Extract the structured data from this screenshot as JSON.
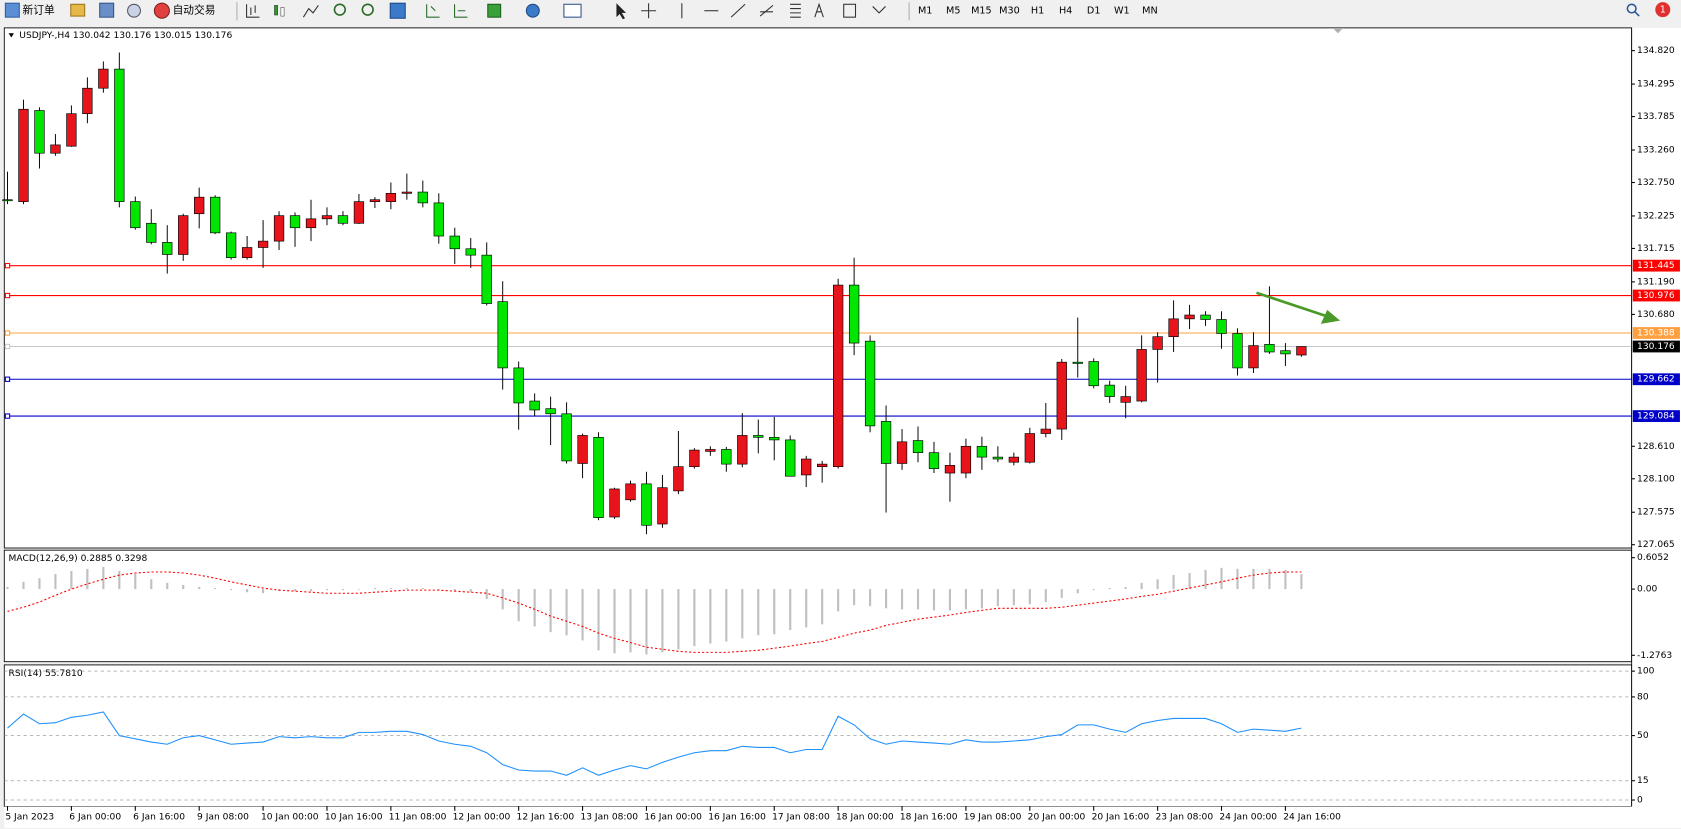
{
  "toolbar": {
    "new_order": "新订单",
    "auto_trading": "自动交易",
    "timeframes": [
      "M1",
      "M5",
      "M15",
      "M30",
      "H1",
      "H4",
      "D1",
      "W1",
      "MN"
    ],
    "notifications": "1"
  },
  "chart_data": [
    {
      "type": "candlestick",
      "header": "USDJPY-,H4  130.042 130.176 130.015 130.176",
      "categories": [
        "5 Jan 2023",
        null,
        null,
        null,
        "6 Jan 00:00",
        null,
        null,
        null,
        "6 Jan 16:00",
        null,
        null,
        null,
        "9 Jan 08:00",
        null,
        null,
        null,
        "10 Jan 00:00",
        null,
        null,
        null,
        "10 Jan 16:00",
        null,
        null,
        null,
        "11 Jan 08:00",
        null,
        null,
        null,
        "12 Jan 00:00",
        null,
        null,
        null,
        "12 Jan 16:00",
        null,
        null,
        null,
        "13 Jan 08:00",
        null,
        null,
        null,
        "16 Jan 00:00",
        null,
        null,
        null,
        "16 Jan 16:00",
        null,
        null,
        null,
        "17 Jan 08:00",
        null,
        null,
        null,
        "18 Jan 00:00",
        null,
        null,
        null,
        "18 Jan 16:00",
        null,
        null,
        null,
        "19 Jan 08:00",
        null,
        null,
        null,
        "20 Jan 00:00",
        null,
        null,
        null,
        "20 Jan 16:00",
        null,
        null,
        null,
        "23 Jan 08:00",
        null,
        null,
        null,
        "24 Jan 00:00",
        null,
        null,
        null,
        "24 Jan 16:00",
        null
      ],
      "open": [
        132.48,
        132.45,
        133.88,
        133.21,
        133.32,
        133.83,
        134.23,
        134.53,
        132.45,
        132.11,
        131.81,
        131.62,
        132.26,
        132.52,
        131.96,
        131.57,
        131.73,
        131.83,
        132.23,
        132.04,
        132.18,
        132.23,
        132.11,
        132.45,
        132.45,
        132.58,
        132.6,
        132.43,
        131.91,
        131.71,
        131.61,
        130.88,
        129.84,
        129.32,
        129.2,
        129.12,
        128.34,
        128.75,
        127.5,
        127.77,
        128.02,
        127.39,
        127.91,
        128.29,
        128.53,
        128.56,
        128.33,
        128.78,
        128.75,
        128.71,
        128.16,
        128.29,
        128.29,
        131.14,
        130.26,
        129.0,
        128.34,
        128.7,
        128.51,
        128.19,
        128.19,
        128.61,
        128.44,
        128.36,
        128.36,
        128.81,
        128.88,
        129.93,
        129.94,
        129.57,
        129.3,
        129.32,
        130.13,
        130.33,
        130.61,
        130.67,
        130.6,
        130.38,
        129.84,
        130.21,
        130.11,
        130.042
      ],
      "high": [
        132.92,
        134.05,
        133.93,
        133.51,
        133.96,
        134.4,
        134.65,
        134.79,
        132.53,
        132.33,
        132.08,
        132.26,
        132.67,
        132.55,
        131.98,
        131.91,
        132.16,
        132.3,
        132.28,
        132.48,
        132.36,
        132.3,
        132.57,
        132.52,
        132.75,
        132.89,
        132.78,
        132.58,
        132.04,
        131.88,
        131.81,
        131.2,
        129.94,
        129.44,
        129.39,
        129.3,
        128.81,
        128.83,
        127.96,
        128.07,
        128.21,
        128.16,
        128.85,
        128.58,
        128.61,
        128.6,
        129.13,
        129.03,
        129.07,
        128.78,
        128.46,
        128.38,
        131.24,
        131.57,
        130.35,
        129.25,
        128.88,
        128.92,
        128.68,
        128.51,
        128.73,
        128.76,
        128.61,
        128.51,
        128.9,
        129.29,
        129.98,
        130.63,
        129.99,
        129.64,
        129.56,
        130.35,
        130.4,
        130.9,
        130.83,
        130.73,
        130.73,
        130.46,
        130.4,
        131.12,
        130.23,
        130.176
      ],
      "low": [
        132.41,
        132.41,
        132.97,
        133.17,
        133.31,
        133.68,
        134.16,
        132.36,
        132.01,
        131.78,
        131.32,
        131.52,
        132.03,
        131.94,
        131.54,
        131.54,
        131.41,
        131.69,
        131.74,
        131.83,
        132.08,
        132.08,
        132.1,
        132.35,
        132.33,
        132.48,
        132.36,
        131.79,
        131.47,
        131.41,
        130.82,
        129.5,
        128.87,
        129.08,
        128.63,
        128.34,
        128.11,
        127.45,
        127.47,
        127.74,
        127.23,
        127.33,
        127.86,
        128.26,
        128.46,
        128.21,
        128.28,
        128.5,
        128.39,
        128.14,
        127.97,
        128.04,
        128.26,
        130.04,
        128.83,
        127.57,
        128.24,
        128.36,
        128.19,
        127.74,
        128.11,
        128.24,
        128.36,
        128.31,
        128.34,
        128.75,
        128.71,
        129.69,
        129.52,
        129.29,
        129.05,
        129.3,
        129.61,
        130.09,
        130.45,
        130.5,
        130.14,
        129.72,
        129.76,
        130.06,
        129.87,
        130.015
      ],
      "close": [
        132.47,
        133.9,
        133.21,
        133.34,
        133.83,
        134.23,
        134.53,
        132.45,
        132.04,
        131.81,
        131.62,
        132.23,
        132.52,
        131.96,
        131.57,
        131.73,
        131.83,
        132.23,
        132.04,
        132.18,
        132.23,
        132.11,
        132.45,
        132.48,
        132.58,
        132.6,
        132.43,
        131.91,
        131.71,
        131.61,
        130.85,
        129.84,
        129.29,
        129.18,
        129.12,
        128.38,
        128.78,
        127.49,
        127.94,
        128.02,
        127.37,
        127.96,
        128.29,
        128.55,
        128.56,
        128.33,
        128.78,
        128.75,
        128.71,
        128.14,
        128.41,
        128.33,
        131.14,
        130.23,
        128.93,
        128.34,
        128.68,
        128.51,
        128.26,
        128.31,
        128.61,
        128.44,
        128.41,
        128.44,
        128.81,
        128.88,
        129.93,
        129.91,
        129.56,
        129.39,
        129.39,
        130.13,
        130.33,
        130.61,
        130.67,
        130.6,
        130.38,
        129.84,
        130.19,
        130.09,
        130.06,
        130.176
      ],
      "up_color": "#e8141c",
      "down_color": "#00e600",
      "ylim": [
        127.03,
        135.16
      ],
      "yticks": [
        {
          "value": 134.82,
          "label": "134.820"
        },
        134.295,
        133.785,
        {
          "value": 133.26,
          "label": "133.260"
        },
        {
          "value": 132.75,
          "label": "132.750"
        },
        132.225,
        131.715,
        {
          "value": 131.19,
          "label": "131.190"
        },
        {
          "value": 130.68,
          "label": "130.680"
        },
        {
          "value": 128.61,
          "label": "128.610"
        },
        {
          "value": 128.1,
          "label": "128.100"
        },
        127.575,
        127.065
      ],
      "levels": [
        {
          "value": 131.445,
          "color": "#ff0000",
          "label_color": "#ff0000"
        },
        {
          "value": 130.976,
          "color": "#ff0000",
          "label_color": "#ff0000"
        },
        {
          "value": 130.388,
          "color": "#ffa040",
          "label_color": "#ffa040"
        },
        {
          "value": 130.176,
          "color": "#c8c8c8",
          "label_color": "#000000"
        },
        {
          "value": 129.662,
          "color": "#0000c8",
          "label_color": "#0000c8"
        },
        {
          "value": 129.084,
          "color": "#0000c8",
          "label_color": "#0000c8"
        }
      ]
    },
    {
      "type": "macd",
      "header": "MACD(12,26,9) 0.2885 0.3298",
      "histogram": [
        0.04,
        0.14,
        0.21,
        0.29,
        0.35,
        0.39,
        0.43,
        0.35,
        0.29,
        0.19,
        0.12,
        0.08,
        0.04,
        0.02,
        -0.02,
        -0.06,
        -0.08,
        -0.04,
        -0.04,
        -0.04,
        -0.02,
        -0.02,
        0,
        0.02,
        0.02,
        0.02,
        0.02,
        -0.02,
        -0.04,
        -0.06,
        -0.19,
        -0.39,
        -0.62,
        -0.72,
        -0.83,
        -0.89,
        -0.99,
        -1.18,
        -1.24,
        -1.22,
        -1.26,
        -1.22,
        -1.16,
        -1.1,
        -1.05,
        -1.01,
        -0.95,
        -0.89,
        -0.87,
        -0.79,
        -0.74,
        -0.68,
        -0.43,
        -0.31,
        -0.33,
        -0.37,
        -0.39,
        -0.39,
        -0.41,
        -0.41,
        -0.39,
        -0.37,
        -0.33,
        -0.31,
        -0.29,
        -0.25,
        -0.17,
        -0.08,
        -0.02,
        0.02,
        0.04,
        0.12,
        0.19,
        0.27,
        0.31,
        0.37,
        0.41,
        0.39,
        0.39,
        0.39,
        0.37,
        0.2885
      ],
      "signal": [
        -0.43,
        -0.35,
        -0.25,
        -0.12,
        0,
        0.1,
        0.19,
        0.27,
        0.31,
        0.33,
        0.33,
        0.31,
        0.27,
        0.21,
        0.14,
        0.08,
        0.02,
        -0.02,
        -0.04,
        -0.06,
        -0.08,
        -0.08,
        -0.08,
        -0.06,
        -0.04,
        -0.02,
        -0.02,
        -0.02,
        -0.04,
        -0.06,
        -0.08,
        -0.17,
        -0.27,
        -0.39,
        -0.52,
        -0.62,
        -0.72,
        -0.85,
        -0.95,
        -1.03,
        -1.12,
        -1.16,
        -1.2,
        -1.22,
        -1.22,
        -1.22,
        -1.2,
        -1.18,
        -1.14,
        -1.1,
        -1.05,
        -1.01,
        -0.93,
        -0.85,
        -0.79,
        -0.7,
        -0.64,
        -0.58,
        -0.54,
        -0.5,
        -0.45,
        -0.41,
        -0.37,
        -0.37,
        -0.37,
        -0.37,
        -0.35,
        -0.31,
        -0.27,
        -0.23,
        -0.19,
        -0.14,
        -0.1,
        -0.04,
        0.02,
        0.08,
        0.14,
        0.21,
        0.27,
        0.31,
        0.33,
        0.3298
      ],
      "histogram_color": "#c0c0c0",
      "signal_color": "#ff0000",
      "ylim": [
        -1.4,
        0.73
      ],
      "yticks": [
        0.6052,
        {
          "value": 0,
          "label": "0.00"
        },
        -1.2763
      ]
    },
    {
      "type": "line",
      "header": "RSI(14) 55.7810",
      "values": [
        55.8,
        66.7,
        59.2,
        60.0,
        64.2,
        65.8,
        68.3,
        50.0,
        47.5,
        45.0,
        43.3,
        48.3,
        50.0,
        46.7,
        43.3,
        44.2,
        45.0,
        49.2,
        48.3,
        49.2,
        48.3,
        48.3,
        52.5,
        52.5,
        53.3,
        53.3,
        50.8,
        45.8,
        43.3,
        41.7,
        36.7,
        27.5,
        23.3,
        22.5,
        22.5,
        19.2,
        25.0,
        19.2,
        23.3,
        26.7,
        24.2,
        29.2,
        33.3,
        36.7,
        38.3,
        38.3,
        41.7,
        40.8,
        40.8,
        36.7,
        39.2,
        39.2,
        65.0,
        58.3,
        47.5,
        43.3,
        45.8,
        45.0,
        44.2,
        43.3,
        46.7,
        45.0,
        45.0,
        45.8,
        46.7,
        49.2,
        50.8,
        58.3,
        58.3,
        55.0,
        52.5,
        59.2,
        61.7,
        63.3,
        63.3,
        63.3,
        59.2,
        52.5,
        55.0,
        54.2,
        53.3,
        55.781
      ],
      "color": "#1e90ff",
      "ylim": [
        -5,
        104
      ],
      "yticks": [
        100,
        80,
        50,
        15,
        0
      ],
      "grid": true
    }
  ]
}
